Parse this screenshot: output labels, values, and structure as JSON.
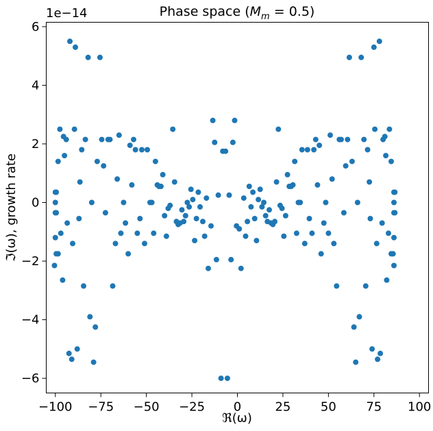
{
  "chart_data": {
    "type": "scatter",
    "title": "Phase space (M_m = 0.5)",
    "title_parts": {
      "prefix": "Phase space (",
      "math_var": "M",
      "math_sub": "m",
      "math_rest": " = 0.5)"
    },
    "xlabel": "ℜ(ω)",
    "ylabel": "ℑ(ω), growth rate",
    "offset_label": "1e−14",
    "y_scale_factor": 1e-14,
    "xlim": [
      -105,
      105
    ],
    "ylim": [
      -6.5,
      6.15
    ],
    "x_ticks": [
      -100,
      -75,
      -50,
      -25,
      0,
      25,
      50,
      75,
      100
    ],
    "x_tick_labels": [
      "−100",
      "−75",
      "−50",
      "−25",
      "0",
      "25",
      "50",
      "75",
      "100"
    ],
    "y_ticks": [
      -6,
      -4,
      -2,
      0,
      2,
      4,
      6
    ],
    "y_tick_labels": [
      "−6",
      "−4",
      "−2",
      "0",
      "2",
      "4",
      "6"
    ],
    "grid": false,
    "legend": "none",
    "marker_color": "#1f77b4",
    "points": [
      [
        -100,
        0.35
      ],
      [
        -99.5,
        0.35
      ],
      [
        -100,
        0
      ],
      [
        -100,
        -0.35
      ],
      [
        -99.5,
        -0.35
      ],
      [
        -100,
        -1.2
      ],
      [
        -100.5,
        -2.15
      ],
      [
        -99.5,
        -1.75
      ],
      [
        -98.5,
        -1.75
      ],
      [
        -98.5,
        1.4
      ],
      [
        -97.5,
        2.5
      ],
      [
        -97,
        -1.05
      ],
      [
        -96,
        -2.65
      ],
      [
        -95.5,
        2.25
      ],
      [
        -95,
        1.6
      ],
      [
        -94,
        2.15
      ],
      [
        -93.5,
        -0.7
      ],
      [
        -92.5,
        -5.15
      ],
      [
        -92,
        5.5
      ],
      [
        -91,
        -5.35
      ],
      [
        -90.5,
        -1.4
      ],
      [
        -89.5,
        2.5
      ],
      [
        -89,
        5.3
      ],
      [
        -88,
        -5
      ],
      [
        -87,
        -0.55
      ],
      [
        -86.5,
        0.7
      ],
      [
        -85.5,
        1.8
      ],
      [
        -84.5,
        -2.85
      ],
      [
        -83.5,
        2.15
      ],
      [
        -82,
        4.95
      ],
      [
        -81,
        -3.9
      ],
      [
        -80,
        0
      ],
      [
        -79,
        -5.45
      ],
      [
        -78,
        -4.25
      ],
      [
        -77,
        1.4
      ],
      [
        -75.5,
        4.95
      ],
      [
        -74.5,
        2.15
      ],
      [
        -73.5,
        1.25
      ],
      [
        -72.5,
        -0.35
      ],
      [
        -71,
        2.15
      ],
      [
        -70,
        2.15
      ],
      [
        -68.5,
        -2.85
      ],
      [
        -67,
        -1.4
      ],
      [
        -66,
        0.8
      ],
      [
        -65,
        2.3
      ],
      [
        -64,
        -1.05
      ],
      [
        -62.5,
        0
      ],
      [
        -61.5,
        -0.7
      ],
      [
        -60,
        -1.75
      ],
      [
        -59,
        1.95
      ],
      [
        -58,
        0.6
      ],
      [
        -57,
        2.15
      ],
      [
        -56,
        1.8
      ],
      [
        -55,
        -1.05
      ],
      [
        -53.5,
        -0.55
      ],
      [
        -52.5,
        1.8
      ],
      [
        -51,
        -1.4
      ],
      [
        -49.5,
        1.8
      ],
      [
        -48,
        0
      ],
      [
        -47,
        0
      ],
      [
        -46,
        -1.05
      ],
      [
        -45,
        1.4
      ],
      [
        -44,
        0.6
      ],
      [
        -43,
        0.55
      ],
      [
        -42,
        0.55
      ],
      [
        -41,
        0.95
      ],
      [
        -40,
        -0.45
      ],
      [
        -39,
        -1.15
      ],
      [
        -38,
        -0.2
      ],
      [
        -37,
        -0.1
      ],
      [
        -35.5,
        2.5
      ],
      [
        -34.5,
        0.7
      ],
      [
        -33.5,
        -0.65
      ],
      [
        -32.5,
        -0.75
      ],
      [
        -31.5,
        -0.7
      ],
      [
        -30.5,
        -0.25
      ],
      [
        -29.5,
        -0.65
      ],
      [
        -28.5,
        -0.45
      ],
      [
        -27.5,
        0
      ],
      [
        -26.5,
        -0.15
      ],
      [
        -25.5,
        0.45
      ],
      [
        -24.5,
        0.1
      ],
      [
        -23.5,
        -1.3
      ],
      [
        -22.5,
        -0.55
      ],
      [
        -21.5,
        0.35
      ],
      [
        -20.5,
        -0.15
      ],
      [
        -19,
        -0.65
      ],
      [
        -18,
        -1.15
      ],
      [
        -17,
        0.15
      ],
      [
        -16,
        -2.25
      ],
      [
        -14.5,
        -0.8
      ],
      [
        -13.5,
        2.8
      ],
      [
        -12.5,
        2.05
      ],
      [
        -11.5,
        -1.95
      ],
      [
        -10.5,
        0.25
      ],
      [
        -9,
        -6
      ],
      [
        -8,
        1.75
      ],
      [
        -6.5,
        1.75
      ],
      [
        -5.5,
        -6
      ],
      [
        -4.5,
        0.25
      ],
      [
        -3.5,
        -1.95
      ],
      [
        -2.5,
        2.05
      ],
      [
        -1.5,
        2.8
      ],
      [
        -0.5,
        -0.8
      ],
      [
        1,
        -0.9
      ],
      [
        2,
        -2.25
      ],
      [
        3.5,
        0.15
      ],
      [
        4.5,
        -1.15
      ],
      [
        5.5,
        -0.65
      ],
      [
        6.5,
        0.55
      ],
      [
        7.5,
        -0.15
      ],
      [
        8.5,
        0.35
      ],
      [
        9.5,
        -0.55
      ],
      [
        10.5,
        -1.3
      ],
      [
        11.5,
        0.1
      ],
      [
        12.5,
        0.45
      ],
      [
        13.5,
        -0.15
      ],
      [
        14.5,
        0
      ],
      [
        15.5,
        -0.45
      ],
      [
        16.5,
        -0.65
      ],
      [
        17.5,
        -0.25
      ],
      [
        18.5,
        -0.7
      ],
      [
        19.5,
        -0.75
      ],
      [
        20.5,
        -0.65
      ],
      [
        21.5,
        0.7
      ],
      [
        22.5,
        2.5
      ],
      [
        23.5,
        -0.1
      ],
      [
        24.5,
        -0.2
      ],
      [
        25.5,
        -1.15
      ],
      [
        26.5,
        -0.45
      ],
      [
        27.5,
        0.95
      ],
      [
        28.5,
        0.55
      ],
      [
        29.5,
        0.55
      ],
      [
        30.5,
        0.6
      ],
      [
        31.5,
        1.4
      ],
      [
        32.5,
        -1.05
      ],
      [
        33.5,
        0
      ],
      [
        34.5,
        0
      ],
      [
        35.5,
        1.8
      ],
      [
        37,
        -1.4
      ],
      [
        38.5,
        1.8
      ],
      [
        39.5,
        -0.55
      ],
      [
        41,
        -1.05
      ],
      [
        42,
        1.8
      ],
      [
        43,
        2.15
      ],
      [
        44,
        0.6
      ],
      [
        45,
        1.95
      ],
      [
        46,
        -1.75
      ],
      [
        47.5,
        -0.7
      ],
      [
        48.5,
        0
      ],
      [
        50,
        -1.05
      ],
      [
        51,
        2.3
      ],
      [
        52,
        0.8
      ],
      [
        53,
        -1.4
      ],
      [
        54.5,
        -2.85
      ],
      [
        56,
        2.15
      ],
      [
        57,
        2.15
      ],
      [
        58.5,
        -0.35
      ],
      [
        59.5,
        1.25
      ],
      [
        60.5,
        2.15
      ],
      [
        61.5,
        4.95
      ],
      [
        63,
        1.4
      ],
      [
        64,
        -4.25
      ],
      [
        65,
        -5.45
      ],
      [
        66,
        0
      ],
      [
        67,
        -3.9
      ],
      [
        68,
        4.95
      ],
      [
        69.5,
        2.15
      ],
      [
        70.5,
        -2.85
      ],
      [
        71.5,
        1.8
      ],
      [
        72.5,
        0.7
      ],
      [
        73,
        -0.55
      ],
      [
        74,
        -5
      ],
      [
        75,
        5.3
      ],
      [
        75.5,
        2.5
      ],
      [
        76.5,
        -1.4
      ],
      [
        77,
        -5.35
      ],
      [
        78,
        5.5
      ],
      [
        78.5,
        -5.15
      ],
      [
        79.5,
        -0.7
      ],
      [
        80,
        2.15
      ],
      [
        81,
        2.25
      ],
      [
        81.5,
        1.6
      ],
      [
        82,
        -2.65
      ],
      [
        83,
        -1.05
      ],
      [
        83.5,
        2.5
      ],
      [
        84.5,
        1.4
      ],
      [
        84.5,
        -1.75
      ],
      [
        85.5,
        -1.75
      ],
      [
        86,
        -2.15
      ],
      [
        86,
        -1.2
      ],
      [
        86,
        -0.35
      ],
      [
        86.5,
        -0.35
      ],
      [
        86,
        0
      ],
      [
        86,
        0.35
      ],
      [
        86.5,
        0.35
      ]
    ]
  }
}
